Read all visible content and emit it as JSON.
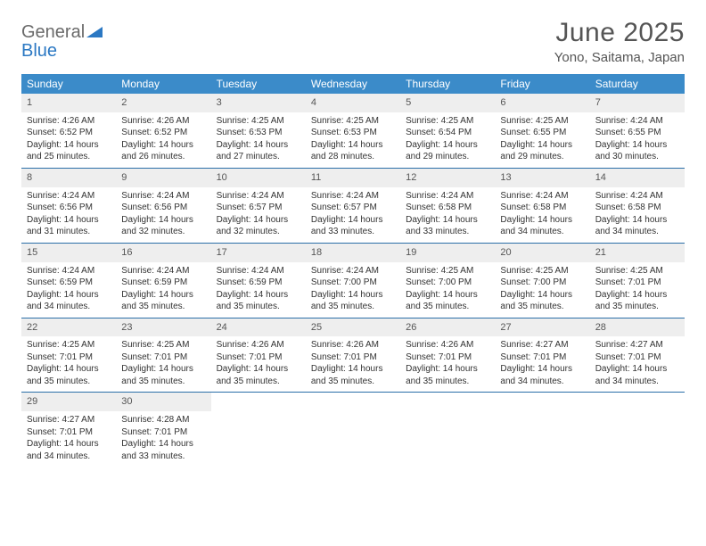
{
  "logo": {
    "word1": "General",
    "word2": "Blue"
  },
  "title": "June 2025",
  "location": "Yono, Saitama, Japan",
  "colors": {
    "header_bg": "#3b8bc9",
    "week_border": "#2b6fa8",
    "daynum_bg": "#eeeeee",
    "logo_gray": "#6a6a6a",
    "logo_blue": "#2b78c3",
    "text": "#333333"
  },
  "dayHeaders": [
    "Sunday",
    "Monday",
    "Tuesday",
    "Wednesday",
    "Thursday",
    "Friday",
    "Saturday"
  ],
  "weeks": [
    [
      {
        "n": "1",
        "sr": "4:26 AM",
        "ss": "6:52 PM",
        "dl": "14 hours and 25 minutes."
      },
      {
        "n": "2",
        "sr": "4:26 AM",
        "ss": "6:52 PM",
        "dl": "14 hours and 26 minutes."
      },
      {
        "n": "3",
        "sr": "4:25 AM",
        "ss": "6:53 PM",
        "dl": "14 hours and 27 minutes."
      },
      {
        "n": "4",
        "sr": "4:25 AM",
        "ss": "6:53 PM",
        "dl": "14 hours and 28 minutes."
      },
      {
        "n": "5",
        "sr": "4:25 AM",
        "ss": "6:54 PM",
        "dl": "14 hours and 29 minutes."
      },
      {
        "n": "6",
        "sr": "4:25 AM",
        "ss": "6:55 PM",
        "dl": "14 hours and 29 minutes."
      },
      {
        "n": "7",
        "sr": "4:24 AM",
        "ss": "6:55 PM",
        "dl": "14 hours and 30 minutes."
      }
    ],
    [
      {
        "n": "8",
        "sr": "4:24 AM",
        "ss": "6:56 PM",
        "dl": "14 hours and 31 minutes."
      },
      {
        "n": "9",
        "sr": "4:24 AM",
        "ss": "6:56 PM",
        "dl": "14 hours and 32 minutes."
      },
      {
        "n": "10",
        "sr": "4:24 AM",
        "ss": "6:57 PM",
        "dl": "14 hours and 32 minutes."
      },
      {
        "n": "11",
        "sr": "4:24 AM",
        "ss": "6:57 PM",
        "dl": "14 hours and 33 minutes."
      },
      {
        "n": "12",
        "sr": "4:24 AM",
        "ss": "6:58 PM",
        "dl": "14 hours and 33 minutes."
      },
      {
        "n": "13",
        "sr": "4:24 AM",
        "ss": "6:58 PM",
        "dl": "14 hours and 34 minutes."
      },
      {
        "n": "14",
        "sr": "4:24 AM",
        "ss": "6:58 PM",
        "dl": "14 hours and 34 minutes."
      }
    ],
    [
      {
        "n": "15",
        "sr": "4:24 AM",
        "ss": "6:59 PM",
        "dl": "14 hours and 34 minutes."
      },
      {
        "n": "16",
        "sr": "4:24 AM",
        "ss": "6:59 PM",
        "dl": "14 hours and 35 minutes."
      },
      {
        "n": "17",
        "sr": "4:24 AM",
        "ss": "6:59 PM",
        "dl": "14 hours and 35 minutes."
      },
      {
        "n": "18",
        "sr": "4:24 AM",
        "ss": "7:00 PM",
        "dl": "14 hours and 35 minutes."
      },
      {
        "n": "19",
        "sr": "4:25 AM",
        "ss": "7:00 PM",
        "dl": "14 hours and 35 minutes."
      },
      {
        "n": "20",
        "sr": "4:25 AM",
        "ss": "7:00 PM",
        "dl": "14 hours and 35 minutes."
      },
      {
        "n": "21",
        "sr": "4:25 AM",
        "ss": "7:01 PM",
        "dl": "14 hours and 35 minutes."
      }
    ],
    [
      {
        "n": "22",
        "sr": "4:25 AM",
        "ss": "7:01 PM",
        "dl": "14 hours and 35 minutes."
      },
      {
        "n": "23",
        "sr": "4:25 AM",
        "ss": "7:01 PM",
        "dl": "14 hours and 35 minutes."
      },
      {
        "n": "24",
        "sr": "4:26 AM",
        "ss": "7:01 PM",
        "dl": "14 hours and 35 minutes."
      },
      {
        "n": "25",
        "sr": "4:26 AM",
        "ss": "7:01 PM",
        "dl": "14 hours and 35 minutes."
      },
      {
        "n": "26",
        "sr": "4:26 AM",
        "ss": "7:01 PM",
        "dl": "14 hours and 35 minutes."
      },
      {
        "n": "27",
        "sr": "4:27 AM",
        "ss": "7:01 PM",
        "dl": "14 hours and 34 minutes."
      },
      {
        "n": "28",
        "sr": "4:27 AM",
        "ss": "7:01 PM",
        "dl": "14 hours and 34 minutes."
      }
    ],
    [
      {
        "n": "29",
        "sr": "4:27 AM",
        "ss": "7:01 PM",
        "dl": "14 hours and 34 minutes."
      },
      {
        "n": "30",
        "sr": "4:28 AM",
        "ss": "7:01 PM",
        "dl": "14 hours and 33 minutes."
      },
      null,
      null,
      null,
      null,
      null
    ]
  ],
  "labels": {
    "sunrise": "Sunrise: ",
    "sunset": "Sunset: ",
    "daylight": "Daylight: "
  }
}
